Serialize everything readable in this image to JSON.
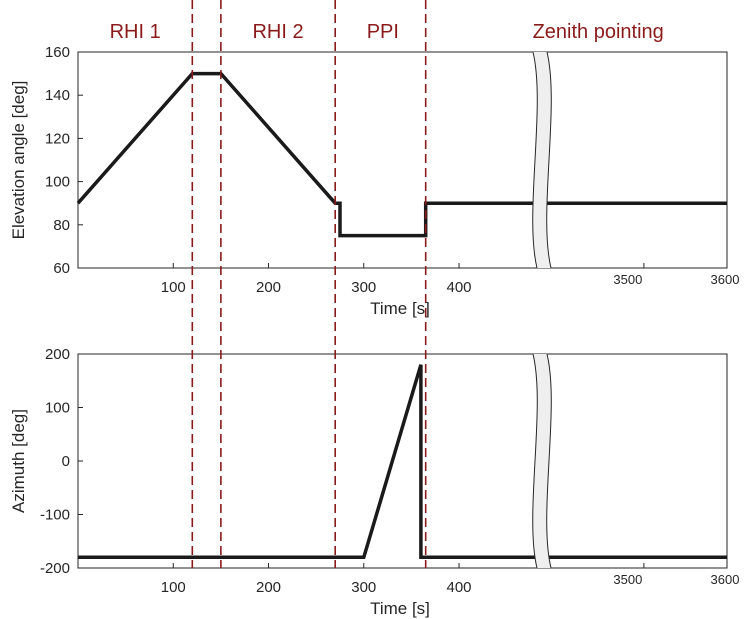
{
  "chart_data": [
    {
      "type": "line",
      "panel": "top",
      "xlabel": "Time [s]",
      "ylabel": "Elevation angle [deg]",
      "ylim": [
        60,
        160
      ],
      "yticks": [
        "60",
        "80",
        "100",
        "120",
        "140",
        "160"
      ],
      "x_segment1_range": [
        0,
        485
      ],
      "x_segment2_range": [
        3375,
        3600
      ],
      "xticks": [
        {
          "value": 100,
          "label": "100"
        },
        {
          "value": 200,
          "label": "200"
        },
        {
          "value": 300,
          "label": "300"
        },
        {
          "value": 400,
          "label": "400"
        },
        {
          "value": 3500,
          "label": "3500"
        },
        {
          "value": 3600,
          "label": "3600"
        }
      ],
      "series": [
        {
          "x": [
            0,
            120,
            150,
            270,
            275,
            275,
            365,
            365,
            3600
          ],
          "y": [
            90,
            150,
            150,
            90,
            90,
            75,
            75,
            90,
            90
          ]
        }
      ]
    },
    {
      "type": "line",
      "panel": "bottom",
      "xlabel": "Time [s]",
      "ylabel": "Azimuth [deg]",
      "ylim": [
        -200,
        200
      ],
      "yticks": [
        "-200",
        "-100",
        "0",
        "100",
        "200"
      ],
      "x_segment1_range": [
        0,
        485
      ],
      "x_segment2_range": [
        3375,
        3600
      ],
      "xticks": [
        {
          "value": 100,
          "label": "100"
        },
        {
          "value": 200,
          "label": "200"
        },
        {
          "value": 300,
          "label": "300"
        },
        {
          "value": 400,
          "label": "400"
        },
        {
          "value": 3500,
          "label": "3500"
        },
        {
          "value": 3600,
          "label": "3600"
        }
      ],
      "series": [
        {
          "x": [
            0,
            300,
            360,
            360,
            3600
          ],
          "y": [
            -180,
            -180,
            180,
            -180,
            -180
          ]
        }
      ]
    }
  ],
  "phases": [
    {
      "label": "RHI 1",
      "center": 60
    },
    {
      "label": "RHI 2",
      "center": 210
    },
    {
      "label": "PPI",
      "center": 320
    },
    {
      "label": "Zenith pointing",
      "center": 3445
    }
  ],
  "phase_boundaries": [
    120,
    150,
    270,
    365
  ],
  "axis_break_x": 3375,
  "colors": {
    "line": "#1a1a1a",
    "phase": "#8b1a1a",
    "axis": "#262626",
    "break_fill": "#efefef"
  }
}
